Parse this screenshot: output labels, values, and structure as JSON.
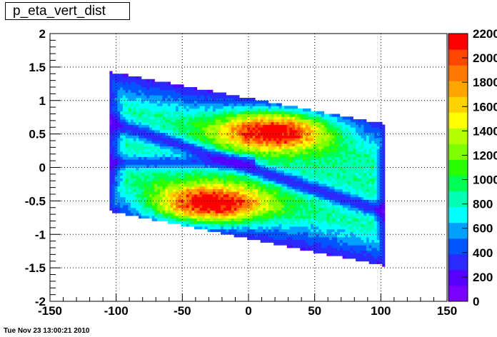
{
  "chart_data": {
    "type": "heatmap",
    "title": "p_eta_vert_dist",
    "xlabel": "",
    "ylabel": "",
    "xlim": [
      -150,
      150
    ],
    "ylim": [
      -2,
      2
    ],
    "zlim": [
      0,
      2200
    ],
    "grid": true,
    "x_ticks": [
      -150,
      -100,
      -50,
      0,
      50,
      100,
      150
    ],
    "y_ticks": [
      -2,
      -1.5,
      -1,
      -0.5,
      0,
      0.5,
      1,
      1.5,
      2
    ],
    "x_tick_labels": [
      "-150",
      "-100",
      "-50",
      "0",
      "50",
      "100",
      "150"
    ],
    "y_tick_labels": [
      "-2",
      "-1.5",
      "-1",
      "-0.5",
      "0",
      "0.5",
      "1",
      "1.5",
      "2"
    ],
    "palette_ticks": [
      0,
      200,
      400,
      600,
      800,
      1000,
      1200,
      1400,
      1600,
      1800,
      2000,
      2200
    ],
    "palette_tick_labels": [
      "0",
      "200",
      "400",
      "600",
      "800",
      "1000",
      "1200",
      "1400",
      "1600",
      "1800",
      "2000",
      "2200"
    ],
    "palette_colors": [
      "#7a00ff",
      "#5500ff",
      "#2a2aff",
      "#0055ff",
      "#00a0ff",
      "#00ffff",
      "#00ffb4",
      "#00ff55",
      "#2aff00",
      "#7fff00",
      "#b4ff00",
      "#ffff00",
      "#ffd200",
      "#ffa500",
      "#ff7800",
      "#ff4600",
      "#ff0000"
    ],
    "data_extent": {
      "x": [
        -105,
        103
      ],
      "y_top_at_x_min": 1.43,
      "y_top_at_x_max": 0.65,
      "y_bottom_at_x_min": -0.65,
      "y_bottom_at_x_max": -1.47
    },
    "hot_spots": [
      {
        "x": 20,
        "y": 0.55,
        "peak": 2150
      },
      {
        "x": -30,
        "y": -0.55,
        "peak": 2200
      }
    ]
  },
  "footer": {
    "timestamp": "Tue Nov 23 13:00:21 2010"
  }
}
